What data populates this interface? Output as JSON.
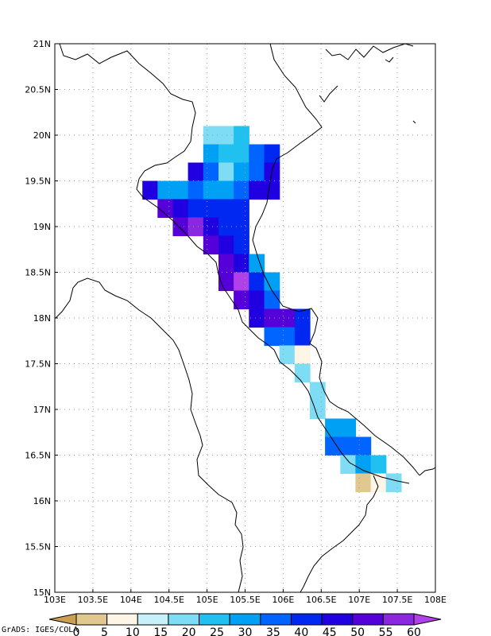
{
  "credit": "GrADS: IGES/COLA",
  "map": {
    "x_ticks": [
      "103E",
      "103.5E",
      "104E",
      "104.5E",
      "105E",
      "105.5E",
      "106E",
      "106.5E",
      "107E",
      "107.5E",
      "108E"
    ],
    "y_ticks": [
      "21N",
      "20.5N",
      "20N",
      "19.5N",
      "19N",
      "18.5N",
      "18N",
      "17.5N",
      "17N",
      "16.5N",
      "16N",
      "15.5N",
      "15N"
    ],
    "lon_range": [
      103,
      108
    ],
    "lat_range": [
      15,
      21
    ],
    "grid": "dotted",
    "grid_step": 0.5
  },
  "colorbar": {
    "labels": [
      "0",
      "5",
      "10",
      "15",
      "20",
      "25",
      "30",
      "35",
      "40",
      "45",
      "50",
      "55",
      "60"
    ],
    "colors": [
      "#c8a050",
      "#e0c890",
      "#fdf5e6",
      "#c8f0f8",
      "#7fdcf5",
      "#20c0f0",
      "#00a0f5",
      "#0064ff",
      "#0028f0",
      "#2000e0",
      "#5500d8",
      "#8a28e0",
      "#b040e8"
    ]
  },
  "chart_data": {
    "type": "heatmap",
    "lon_range": [
      103,
      108
    ],
    "lat_range": [
      15,
      21
    ],
    "color_levels": [
      0,
      5,
      10,
      15,
      20,
      25,
      30,
      35,
      40,
      45,
      50,
      55,
      60
    ],
    "cells": [
      {
        "lon": 105.05,
        "lat": 20.0,
        "v": 17
      },
      {
        "lon": 105.25,
        "lat": 20.0,
        "v": 18
      },
      {
        "lon": 105.45,
        "lat": 20.0,
        "v": 20
      },
      {
        "lon": 105.05,
        "lat": 19.8,
        "v": 25
      },
      {
        "lon": 105.25,
        "lat": 19.8,
        "v": 21
      },
      {
        "lon": 105.45,
        "lat": 19.8,
        "v": 24
      },
      {
        "lon": 105.65,
        "lat": 19.8,
        "v": 32
      },
      {
        "lon": 105.85,
        "lat": 19.8,
        "v": 38
      },
      {
        "lon": 104.85,
        "lat": 19.6,
        "v": 40
      },
      {
        "lon": 105.05,
        "lat": 19.6,
        "v": 30
      },
      {
        "lon": 105.25,
        "lat": 19.6,
        "v": 18
      },
      {
        "lon": 105.45,
        "lat": 19.6,
        "v": 25
      },
      {
        "lon": 105.65,
        "lat": 19.6,
        "v": 33
      },
      {
        "lon": 105.85,
        "lat": 19.6,
        "v": 42
      },
      {
        "lon": 104.25,
        "lat": 19.4,
        "v": 40
      },
      {
        "lon": 104.45,
        "lat": 19.4,
        "v": 28
      },
      {
        "lon": 104.65,
        "lat": 19.4,
        "v": 27
      },
      {
        "lon": 104.85,
        "lat": 19.4,
        "v": 32
      },
      {
        "lon": 105.05,
        "lat": 19.4,
        "v": 28
      },
      {
        "lon": 105.25,
        "lat": 19.4,
        "v": 25
      },
      {
        "lon": 105.45,
        "lat": 19.4,
        "v": 30
      },
      {
        "lon": 105.65,
        "lat": 19.4,
        "v": 40
      },
      {
        "lon": 105.85,
        "lat": 19.4,
        "v": 44
      },
      {
        "lon": 104.45,
        "lat": 19.2,
        "v": 47
      },
      {
        "lon": 104.65,
        "lat": 19.2,
        "v": 40
      },
      {
        "lon": 104.85,
        "lat": 19.2,
        "v": 35
      },
      {
        "lon": 105.05,
        "lat": 19.2,
        "v": 38
      },
      {
        "lon": 105.25,
        "lat": 19.2,
        "v": 35
      },
      {
        "lon": 105.45,
        "lat": 19.2,
        "v": 38
      },
      {
        "lon": 104.65,
        "lat": 19.0,
        "v": 48
      },
      {
        "lon": 104.85,
        "lat": 19.0,
        "v": 53
      },
      {
        "lon": 105.05,
        "lat": 19.0,
        "v": 44
      },
      {
        "lon": 105.25,
        "lat": 19.0,
        "v": 36
      },
      {
        "lon": 105.45,
        "lat": 19.0,
        "v": 35
      },
      {
        "lon": 105.05,
        "lat": 18.8,
        "v": 45
      },
      {
        "lon": 105.25,
        "lat": 18.8,
        "v": 40
      },
      {
        "lon": 105.45,
        "lat": 18.8,
        "v": 38
      },
      {
        "lon": 105.25,
        "lat": 18.6,
        "v": 46
      },
      {
        "lon": 105.45,
        "lat": 18.6,
        "v": 42
      },
      {
        "lon": 105.65,
        "lat": 18.6,
        "v": 28
      },
      {
        "lon": 105.25,
        "lat": 18.4,
        "v": 48
      },
      {
        "lon": 105.45,
        "lat": 18.4,
        "v": 55
      },
      {
        "lon": 105.65,
        "lat": 18.4,
        "v": 35
      },
      {
        "lon": 105.85,
        "lat": 18.4,
        "v": 25
      },
      {
        "lon": 105.45,
        "lat": 18.2,
        "v": 46
      },
      {
        "lon": 105.65,
        "lat": 18.2,
        "v": 44
      },
      {
        "lon": 105.85,
        "lat": 18.2,
        "v": 32
      },
      {
        "lon": 105.65,
        "lat": 18.0,
        "v": 41
      },
      {
        "lon": 105.85,
        "lat": 18.0,
        "v": 46
      },
      {
        "lon": 106.05,
        "lat": 18.0,
        "v": 48
      },
      {
        "lon": 106.25,
        "lat": 18.0,
        "v": 38
      },
      {
        "lon": 105.85,
        "lat": 17.8,
        "v": 33
      },
      {
        "lon": 106.05,
        "lat": 17.8,
        "v": 30
      },
      {
        "lon": 106.25,
        "lat": 17.8,
        "v": 38
      },
      {
        "lon": 106.05,
        "lat": 17.6,
        "v": 18
      },
      {
        "lon": 106.25,
        "lat": 17.6,
        "v": 9
      },
      {
        "lon": 106.25,
        "lat": 17.4,
        "v": 17
      },
      {
        "lon": 106.45,
        "lat": 17.2,
        "v": 18
      },
      {
        "lon": 106.45,
        "lat": 17.0,
        "v": 17
      },
      {
        "lon": 106.65,
        "lat": 16.8,
        "v": 28
      },
      {
        "lon": 106.85,
        "lat": 16.8,
        "v": 29
      },
      {
        "lon": 106.65,
        "lat": 16.6,
        "v": 32
      },
      {
        "lon": 106.85,
        "lat": 16.6,
        "v": 31
      },
      {
        "lon": 107.05,
        "lat": 16.6,
        "v": 30
      },
      {
        "lon": 106.85,
        "lat": 16.4,
        "v": 18
      },
      {
        "lon": 107.05,
        "lat": 16.4,
        "v": 26
      },
      {
        "lon": 107.25,
        "lat": 16.4,
        "v": 23
      },
      {
        "lon": 107.05,
        "lat": 16.2,
        "v": 3
      },
      {
        "lon": 107.25,
        "lat": 16.2,
        "v": 8
      },
      {
        "lon": 107.45,
        "lat": 16.2,
        "v": 17
      }
    ]
  }
}
